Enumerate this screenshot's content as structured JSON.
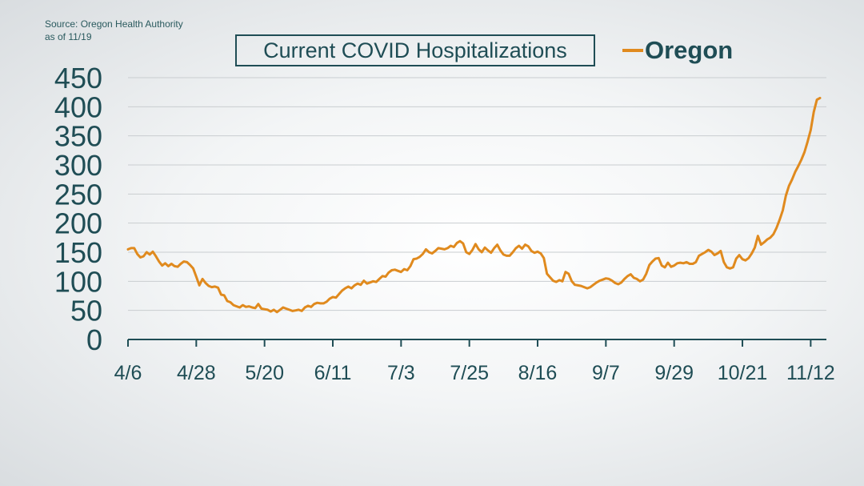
{
  "source": {
    "line1": "Source: Oregon Health Authority",
    "line2": "as of 11/19"
  },
  "chart_data": {
    "type": "line",
    "title": "Current COVID Hospitalizations",
    "xlabel": "",
    "ylabel": "",
    "ylim": [
      0,
      450
    ],
    "y_ticks": [
      0,
      50,
      100,
      150,
      200,
      250,
      300,
      350,
      400,
      450
    ],
    "x_tick_labels": [
      "4/6",
      "4/28",
      "5/20",
      "6/11",
      "7/3",
      "7/25",
      "8/16",
      "9/7",
      "9/29",
      "10/21",
      "11/12"
    ],
    "x_tick_day_index": [
      0,
      22,
      44,
      66,
      88,
      110,
      132,
      154,
      176,
      198,
      220
    ],
    "grid": true,
    "legend_position": "top-right",
    "series": [
      {
        "name": "Oregon",
        "color": "#e08a1e",
        "start_date": "4/6",
        "values": [
          155,
          157,
          157,
          147,
          141,
          143,
          150,
          146,
          151,
          143,
          134,
          127,
          131,
          126,
          130,
          126,
          125,
          130,
          134,
          133,
          128,
          122,
          108,
          93,
          104,
          97,
          92,
          90,
          91,
          89,
          77,
          76,
          66,
          64,
          59,
          57,
          55,
          59,
          56,
          57,
          55,
          54,
          61,
          53,
          52,
          51,
          48,
          51,
          47,
          51,
          55,
          53,
          51,
          49,
          50,
          51,
          49,
          55,
          58,
          56,
          61,
          63,
          62,
          62,
          65,
          70,
          73,
          72,
          78,
          84,
          88,
          91,
          88,
          93,
          96,
          94,
          101,
          96,
          98,
          100,
          99,
          104,
          109,
          108,
          115,
          119,
          120,
          118,
          116,
          121,
          119,
          126,
          138,
          139,
          142,
          147,
          155,
          150,
          148,
          152,
          157,
          156,
          155,
          157,
          161,
          159,
          166,
          169,
          165,
          150,
          147,
          154,
          164,
          155,
          150,
          158,
          153,
          149,
          157,
          163,
          153,
          146,
          144,
          144,
          150,
          157,
          161,
          156,
          163,
          160,
          152,
          149,
          151,
          148,
          140,
          113,
          107,
          101,
          99,
          102,
          100,
          116,
          113,
          100,
          94,
          93,
          92,
          90,
          88,
          90,
          94,
          98,
          101,
          103,
          105,
          104,
          101,
          97,
          95,
          98,
          104,
          109,
          112,
          106,
          104,
          100,
          103,
          113,
          128,
          134,
          139,
          140,
          127,
          124,
          132,
          125,
          127,
          131,
          132,
          131,
          133,
          130,
          130,
          133,
          144,
          147,
          150,
          154,
          151,
          145,
          148,
          152,
          133,
          124,
          122,
          124,
          139,
          145,
          138,
          136,
          140,
          148,
          158,
          178,
          163,
          167,
          172,
          175,
          181,
          192,
          206,
          222,
          247,
          264,
          275,
          288,
          298,
          309,
          322,
          340,
          360,
          391,
          412,
          415
        ]
      }
    ]
  }
}
